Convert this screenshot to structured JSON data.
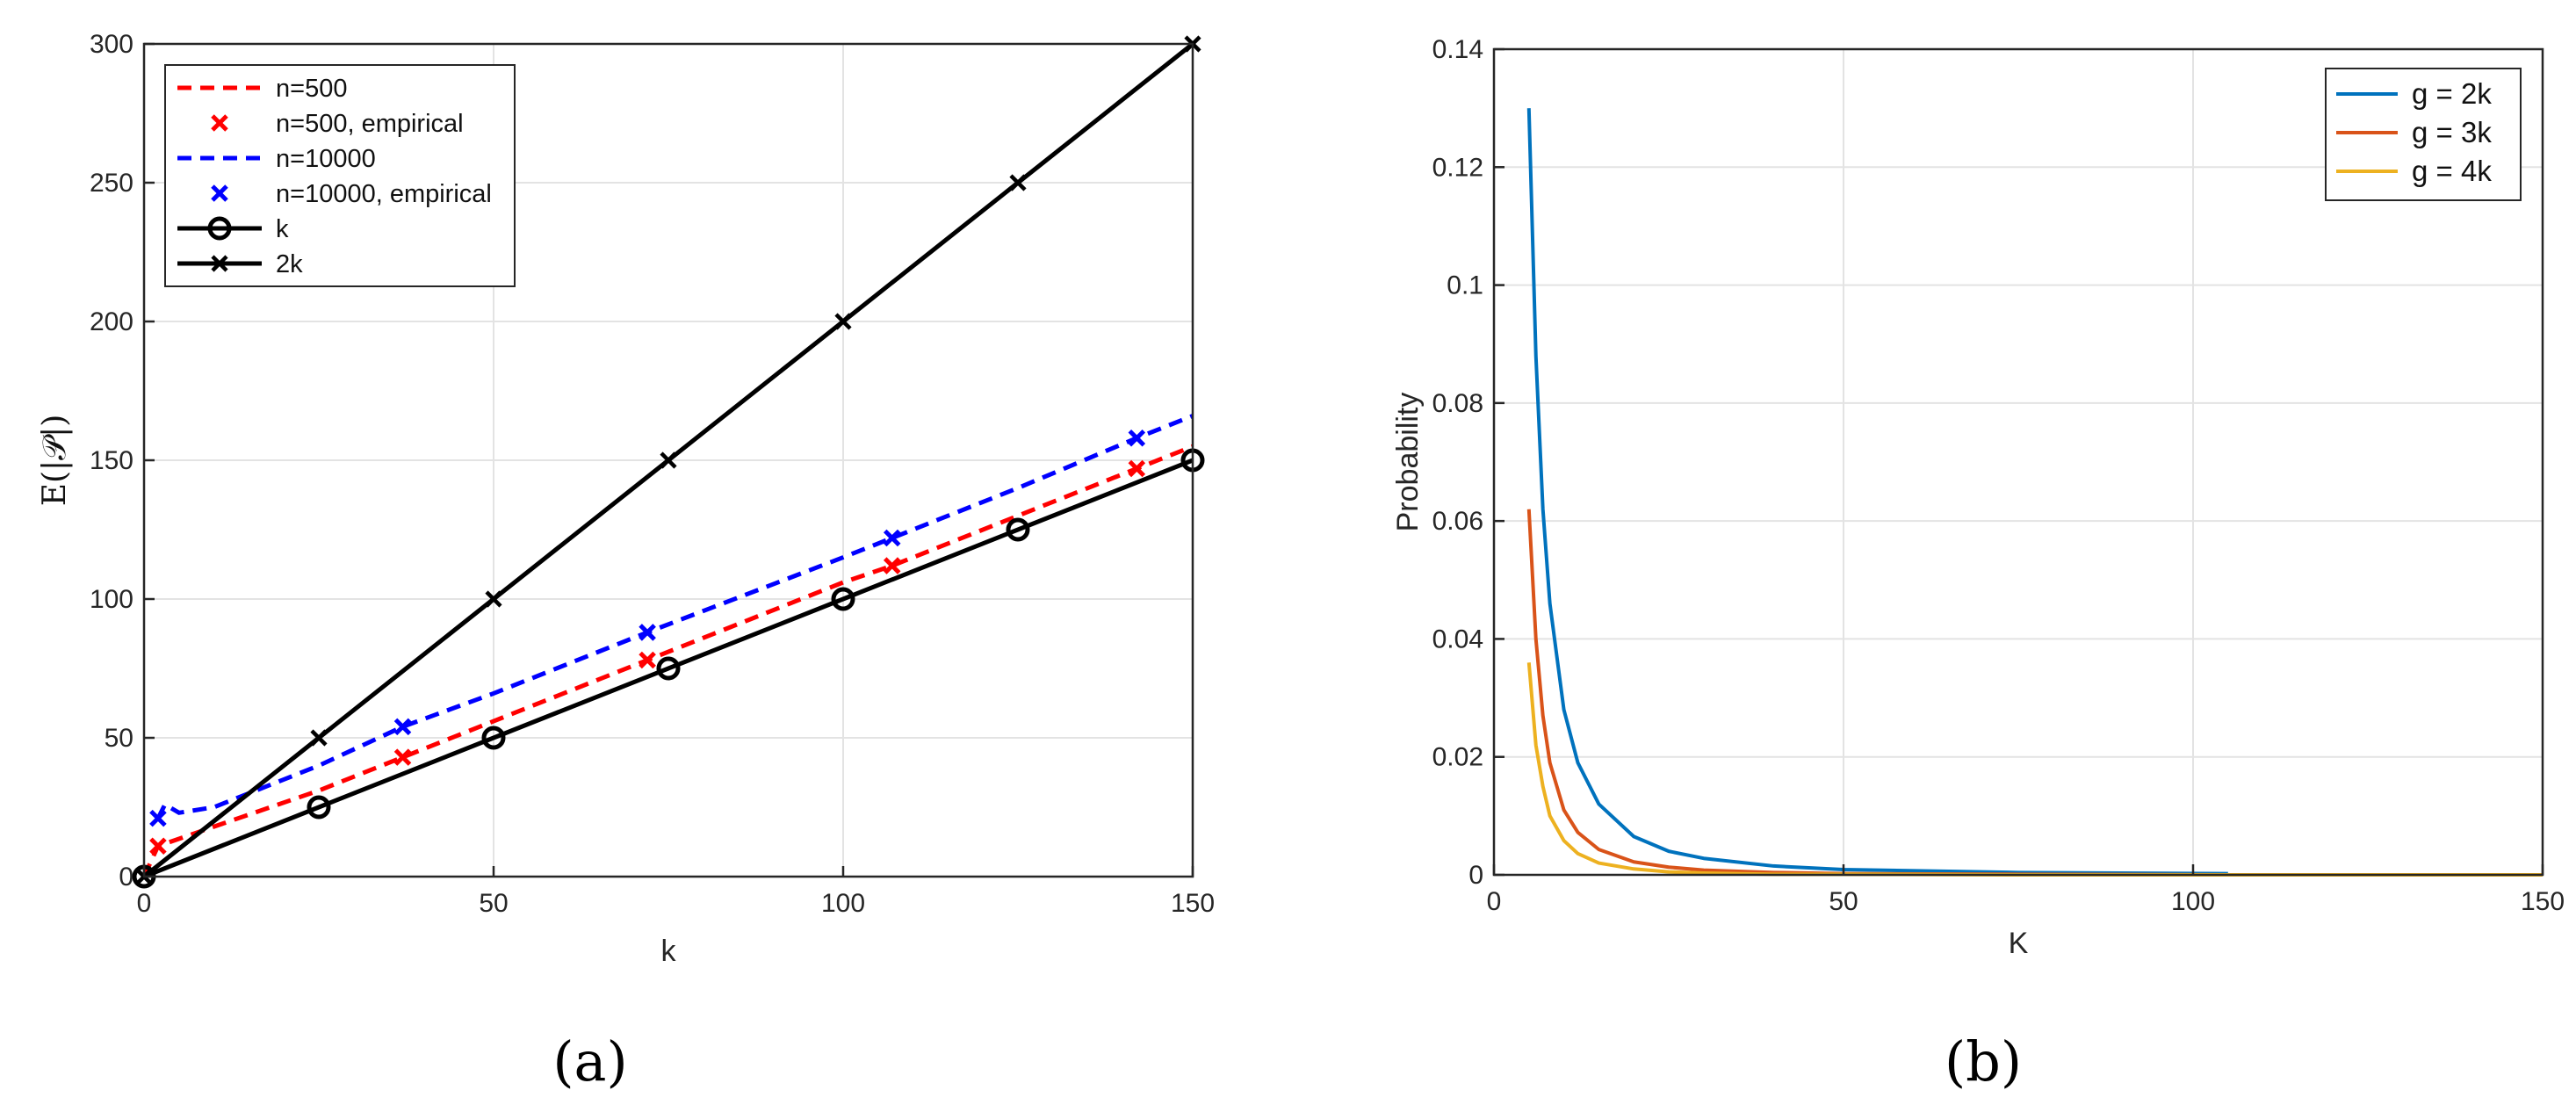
{
  "panels": {
    "a": {
      "caption": "(a)"
    },
    "b": {
      "caption": "(b)"
    }
  },
  "chart_data": [
    {
      "type": "line",
      "title": "",
      "xlabel": "k",
      "ylabel": "E(|𝒫|)",
      "xlim": [
        0,
        150
      ],
      "ylim": [
        0,
        300
      ],
      "xticks": [
        0,
        50,
        100,
        150
      ],
      "yticks": [
        0,
        50,
        100,
        150,
        200,
        250,
        300
      ],
      "grid": true,
      "legend_position": "top-left",
      "series": [
        {
          "name": "n=500",
          "style": "dashed",
          "color": "#ff0000",
          "x": [
            0,
            2,
            10,
            25,
            37,
            50,
            72,
            100,
            107,
            125,
            142,
            150
          ],
          "y": [
            0,
            11,
            18,
            31,
            43,
            56,
            78,
            106,
            112,
            130,
            147,
            155
          ]
        },
        {
          "name": "n=500, empirical",
          "style": "markers-x",
          "color": "#ff0000",
          "x": [
            2,
            37,
            72,
            107,
            142
          ],
          "y": [
            11,
            43,
            78,
            112,
            147
          ]
        },
        {
          "name": "n=10000",
          "style": "dashed",
          "color": "#0000ff",
          "x": [
            2,
            3,
            5,
            10,
            15,
            25,
            37,
            50,
            72,
            100,
            107,
            125,
            142,
            150
          ],
          "y": [
            21,
            26,
            23,
            25,
            30,
            40,
            54,
            66,
            88,
            115,
            122,
            140,
            158,
            166
          ]
        },
        {
          "name": "n=10000, empirical",
          "style": "markers-x",
          "color": "#0000ff",
          "x": [
            2,
            37,
            72,
            107,
            142
          ],
          "y": [
            21,
            54,
            88,
            122,
            158
          ]
        },
        {
          "name": "k",
          "style": "solid-circle",
          "color": "#000000",
          "x": [
            0,
            25,
            50,
            75,
            100,
            125,
            150
          ],
          "y": [
            0,
            25,
            50,
            75,
            100,
            125,
            150
          ]
        },
        {
          "name": "2k",
          "style": "solid-x",
          "color": "#000000",
          "x": [
            0,
            25,
            50,
            75,
            100,
            125,
            150
          ],
          "y": [
            0,
            50,
            100,
            150,
            200,
            250,
            300
          ]
        }
      ]
    },
    {
      "type": "line",
      "title": "",
      "xlabel": "K",
      "ylabel": "Probability",
      "xlim": [
        0,
        150
      ],
      "ylim": [
        0,
        0.14
      ],
      "xticks": [
        0,
        50,
        100,
        150
      ],
      "yticks": [
        0,
        0.02,
        0.04,
        0.06,
        0.08,
        0.1,
        0.12,
        0.14
      ],
      "grid": true,
      "legend_position": "top-right",
      "series": [
        {
          "name": "g = 2k",
          "color": "#0072bd",
          "x": [
            5,
            6,
            7,
            8,
            10,
            12,
            15,
            20,
            25,
            30,
            40,
            50,
            75,
            105
          ],
          "y": [
            0.13,
            0.088,
            0.062,
            0.046,
            0.028,
            0.019,
            0.012,
            0.0065,
            0.004,
            0.0028,
            0.0015,
            0.0009,
            0.0004,
            0.0002
          ]
        },
        {
          "name": "g = 3k",
          "color": "#d95319",
          "x": [
            5,
            6,
            7,
            8,
            10,
            12,
            15,
            20,
            25,
            30,
            40,
            50,
            75,
            105
          ],
          "y": [
            0.062,
            0.04,
            0.027,
            0.019,
            0.011,
            0.0072,
            0.0043,
            0.0022,
            0.0013,
            0.0008,
            0.0004,
            0.0002,
            0.0001,
            0.0
          ]
        },
        {
          "name": "g = 4k",
          "color": "#edb120",
          "x": [
            5,
            6,
            7,
            8,
            10,
            12,
            15,
            20,
            25,
            30,
            40,
            50,
            75,
            105,
            150
          ],
          "y": [
            0.036,
            0.022,
            0.015,
            0.01,
            0.0058,
            0.0036,
            0.002,
            0.001,
            0.0005,
            0.0003,
            0.0001,
            0.0001,
            0.0,
            0.0,
            0.0
          ]
        }
      ]
    }
  ]
}
